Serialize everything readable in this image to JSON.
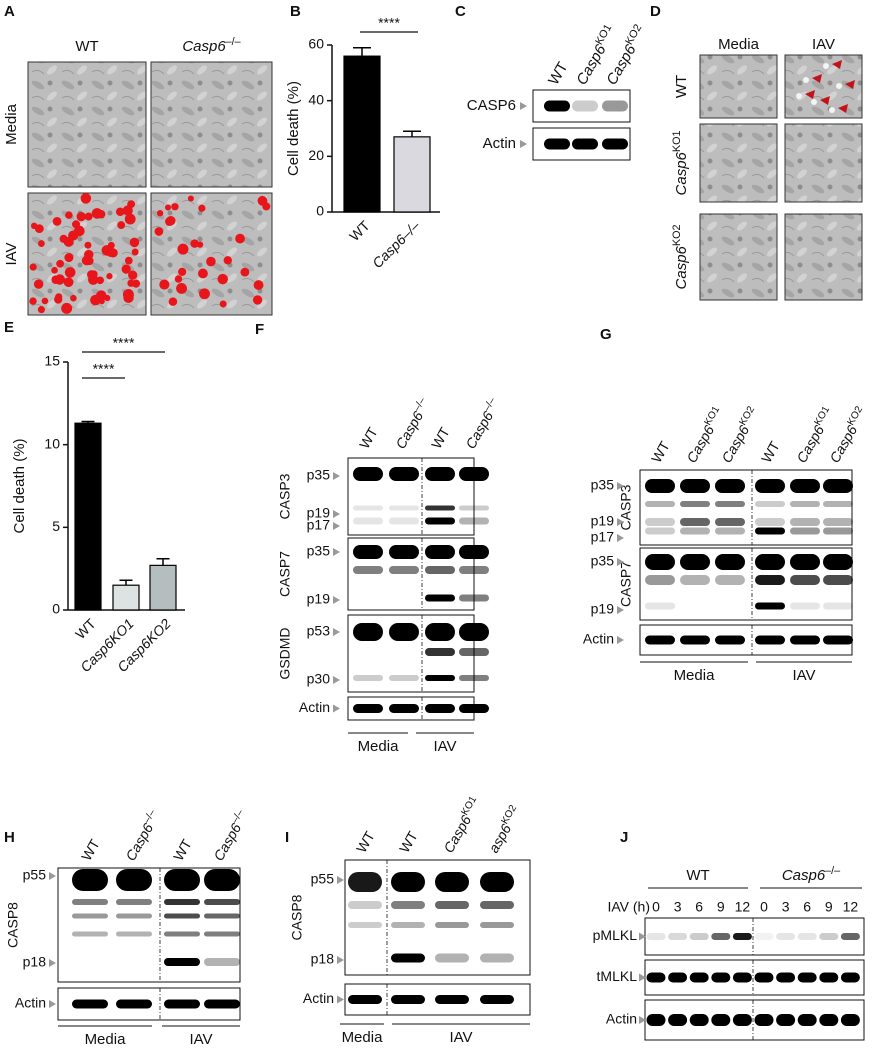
{
  "chart_data": [
    {
      "type": "bar",
      "y_label": "Cell death (%)",
      "categories": [
        "WT",
        "Casp6–/–"
      ],
      "values": [
        56,
        27
      ],
      "errors": [
        3,
        2
      ],
      "colors": [
        "#000000",
        "#d9d9df"
      ],
      "ylim": [
        0,
        60
      ],
      "yticks": [
        0,
        20,
        40,
        60
      ],
      "annotations": [
        "****"
      ]
    },
    {
      "type": "bar",
      "y_label": "Cell death (%)",
      "categories": [
        "WT",
        "Casp6KO1",
        "Casp6KO2"
      ],
      "values": [
        11.3,
        1.5,
        2.7
      ],
      "errors": [
        0.1,
        0.3,
        0.4
      ],
      "colors": [
        "#000000",
        "#dde3e3",
        "#b4bebe"
      ],
      "ylim": [
        0,
        15
      ],
      "yticks": [
        0,
        5,
        10,
        15
      ],
      "annotations": [
        "****",
        "****"
      ]
    }
  ],
  "panels": {
    "A": {
      "label": "A",
      "columns": [
        "WT",
        {
          "text": "Casp6",
          "sup": "–/–"
        }
      ],
      "rows": [
        "Media",
        "IAV"
      ]
    },
    "B": {
      "label": "B"
    },
    "C": {
      "label": "C",
      "lanes": [
        "WT",
        {
          "text": "Casp6",
          "sup": "KO1"
        },
        {
          "text": "Casp6",
          "sup": "KO2"
        }
      ],
      "rows": [
        "CASP6",
        "Actin"
      ]
    },
    "D": {
      "label": "D",
      "columns": [
        "Media",
        "IAV"
      ],
      "rows": [
        "WT",
        {
          "text": "Casp6",
          "sup": "KO1"
        },
        {
          "text": "Casp6",
          "sup": "KO2"
        }
      ]
    },
    "E": {
      "label": "E"
    },
    "F": {
      "label": "F",
      "lanes": [
        "WT",
        {
          "text": "Casp6",
          "sup": "–/–"
        },
        "WT",
        {
          "text": "Casp6",
          "sup": "–/–"
        }
      ],
      "groups": [
        {
          "name": "CASP3",
          "sizes": [
            "p35",
            "p19",
            "p17"
          ]
        },
        {
          "name": "CASP7",
          "sizes": [
            "p35",
            "p19"
          ]
        },
        {
          "name": "GSDMD",
          "sizes": [
            "p53",
            "p30"
          ]
        }
      ],
      "loading": "Actin",
      "conditions": [
        "Media",
        "IAV"
      ]
    },
    "G": {
      "label": "G",
      "lanes": [
        "WT",
        {
          "text": "Casp6",
          "sup": "KO1"
        },
        {
          "text": "Casp6",
          "sup": "KO2"
        },
        "WT",
        {
          "text": "Casp6",
          "sup": "KO1"
        },
        {
          "text": "Casp6",
          "sup": "KO2"
        }
      ],
      "groups": [
        {
          "name": "CASP3",
          "sizes": [
            "p35",
            "p19",
            "p17"
          ]
        },
        {
          "name": "CASP7",
          "sizes": [
            "p35",
            "p19"
          ]
        }
      ],
      "loading": "Actin",
      "conditions": [
        "Media",
        "IAV"
      ]
    },
    "H": {
      "label": "H",
      "lanes": [
        "WT",
        {
          "text": "Casp6",
          "sup": "–/–"
        },
        "WT",
        {
          "text": "Casp6",
          "sup": "–/–"
        }
      ],
      "groups": [
        {
          "name": "CASP8",
          "sizes": [
            "p55",
            "p18"
          ]
        }
      ],
      "loading": "Actin",
      "conditions": [
        "Media",
        "IAV"
      ]
    },
    "I": {
      "label": "I",
      "lanes": [
        "WT",
        "WT",
        {
          "text": "Casp6",
          "sup": "KO1"
        },
        {
          "text": "asp6",
          "sup": "KO2"
        }
      ],
      "groups": [
        {
          "name": "CASP8",
          "sizes": [
            "p55",
            "p18"
          ]
        }
      ],
      "loading": "Actin",
      "conditions": [
        "Media",
        "IAV"
      ]
    },
    "J": {
      "label": "J",
      "groups": [
        "WT",
        {
          "text": "Casp6",
          "sup": "–/–"
        }
      ],
      "time_label": "IAV (h)",
      "times": [
        0,
        3,
        6,
        9,
        12,
        0,
        3,
        6,
        9,
        12
      ],
      "rows": [
        "pMLKL",
        "tMLKL",
        "Actin"
      ]
    }
  }
}
